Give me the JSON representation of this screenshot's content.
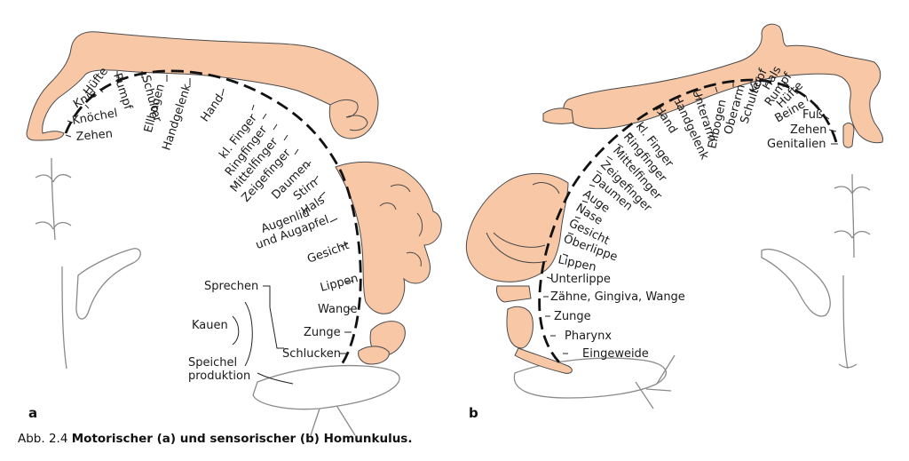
{
  "panel_a": {
    "letter": "a",
    "labels": [
      "Zehen",
      "Knöchel",
      "Knie",
      "Hüfte",
      "Rumpf",
      "Schulter",
      "Ellbogen",
      "Handgelenk",
      "Hand",
      "kl. Finger",
      "Ringfinger",
      "Mittelfinger",
      "Zeigefinger",
      "Daumen",
      "Stirn",
      "Hals",
      "Augenlid\nund Augapfel",
      "Gesicht",
      "Lippen",
      "Wange",
      "Zunge",
      "Schlucken"
    ],
    "function_labels": [
      "Sprechen",
      "Kauen",
      "Speichel\nproduktion"
    ]
  },
  "panel_b": {
    "letter": "b",
    "labels": [
      "Genitalien",
      "Zehen",
      "Fuß",
      "Beine",
      "Hüfte",
      "Rumpf",
      "Hals",
      "Kopf",
      "Schulter",
      "Oberarm",
      "Ellbogen",
      "Unterarm",
      "Handgelenk",
      "Hand",
      "kl. Finger",
      "Ringfinger",
      "Mittelfinger",
      "Zeigefinger",
      "Daumen",
      "Auge",
      "Nase",
      "Gesicht",
      "Oberlippe",
      "Lippen",
      "Unterlippe",
      "Zähne, Gingiva, Wange",
      "Zunge",
      "Pharynx",
      "Eingeweide"
    ]
  },
  "caption": {
    "prefix": "Abb. 2.4",
    "text": "Motorischer (a) und sensorischer (b) Homunkulus."
  }
}
